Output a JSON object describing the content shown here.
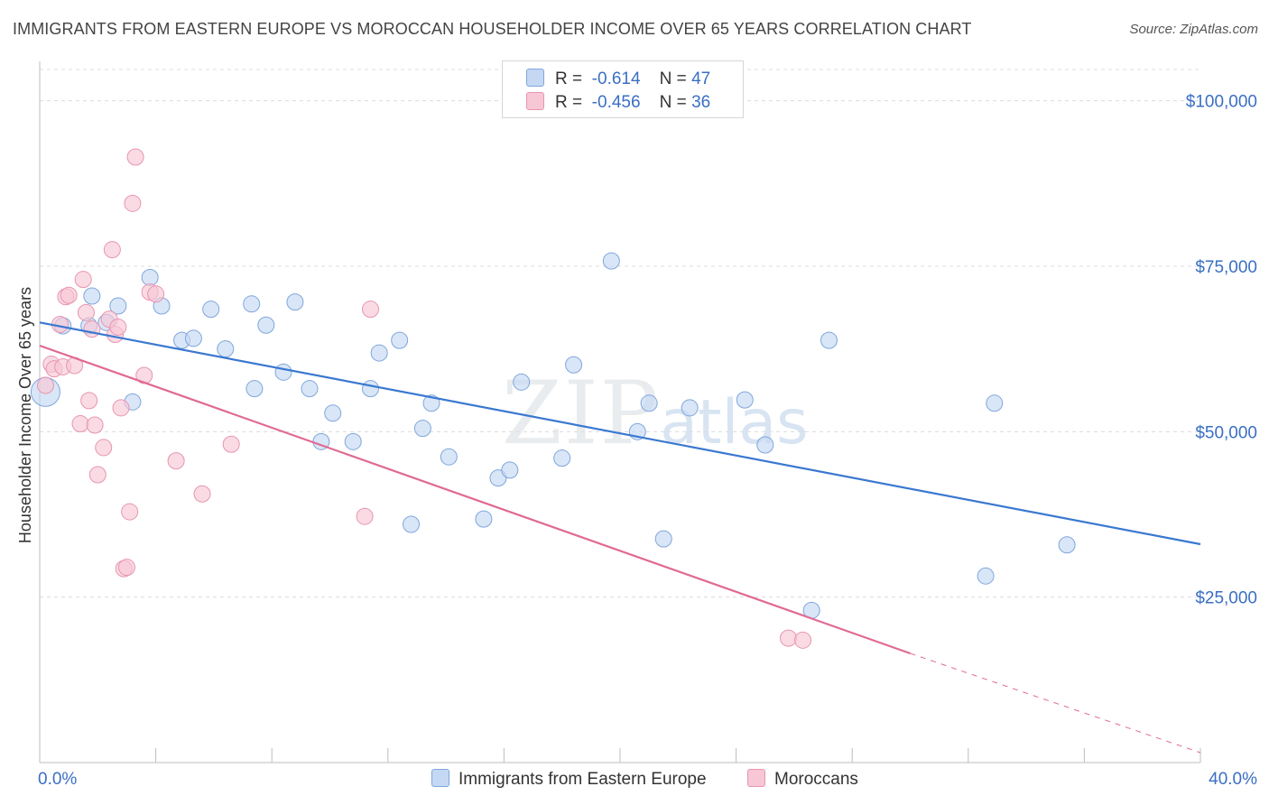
{
  "title": "IMMIGRANTS FROM EASTERN EUROPE VS MOROCCAN HOUSEHOLDER INCOME OVER 65 YEARS CORRELATION CHART",
  "source": "Source: ZipAtlas.com",
  "watermark": {
    "zip": "ZIP",
    "atlas": "atlas"
  },
  "legend": {
    "blue": {
      "r_label": "R =",
      "r_value": "-0.614",
      "n_label": "N =",
      "n_value": "47"
    },
    "pink": {
      "r_label": "R =",
      "r_value": "-0.456",
      "n_label": "N =",
      "n_value": "36"
    }
  },
  "colors": {
    "blue": "#3a78d0",
    "blue_fill": "#c5d8f3",
    "pink": "#e06a93",
    "pink_fill": "#f7c7d6",
    "axis_text": "#3a6fc4"
  },
  "chart_data": {
    "type": "scatter",
    "title": "IMMIGRANTS FROM EASTERN EUROPE VS MOROCCAN HOUSEHOLDER INCOME OVER 65 YEARS CORRELATION CHART",
    "xlabel": "",
    "ylabel": "Householder Income Over 65 years",
    "xlim": [
      0,
      40
    ],
    "ylim": [
      0,
      105000
    ],
    "x_tick_labels": [
      "0.0%",
      "40.0%"
    ],
    "y_ticks": [
      25000,
      50000,
      75000,
      100000
    ],
    "y_tick_labels": [
      "$25,000",
      "$50,000",
      "$75,000",
      "$100,000"
    ],
    "grid": "horizontal dashed",
    "legend_position": "top-center",
    "series": [
      {
        "name": "Immigrants from Eastern Europe",
        "color": "#3a78d0",
        "trend": {
          "x0": 0,
          "y0": 66500,
          "x1": 40,
          "y1": 33000
        },
        "points": [
          [
            0.2,
            56000
          ],
          [
            0.8,
            66000
          ],
          [
            1.7,
            66000
          ],
          [
            1.8,
            70500
          ],
          [
            2.3,
            66500
          ],
          [
            2.7,
            69000
          ],
          [
            3.2,
            54500
          ],
          [
            3.8,
            73300
          ],
          [
            4.2,
            69000
          ],
          [
            4.9,
            63800
          ],
          [
            5.3,
            64100
          ],
          [
            5.9,
            68500
          ],
          [
            6.4,
            62500
          ],
          [
            7.3,
            69300
          ],
          [
            7.4,
            56500
          ],
          [
            7.8,
            66100
          ],
          [
            8.4,
            59000
          ],
          [
            8.8,
            69600
          ],
          [
            9.3,
            56500
          ],
          [
            9.7,
            48500
          ],
          [
            10.1,
            52800
          ],
          [
            10.8,
            48500
          ],
          [
            11.4,
            56500
          ],
          [
            11.7,
            61900
          ],
          [
            12.4,
            63800
          ],
          [
            12.8,
            36000
          ],
          [
            13.2,
            50500
          ],
          [
            13.5,
            54300
          ],
          [
            14.1,
            46200
          ],
          [
            15.3,
            36800
          ],
          [
            15.8,
            43000
          ],
          [
            16.2,
            44200
          ],
          [
            16.6,
            57500
          ],
          [
            18.0,
            46000
          ],
          [
            18.4,
            60100
          ],
          [
            19.7,
            75800
          ],
          [
            20.6,
            50000
          ],
          [
            21.0,
            54300
          ],
          [
            21.5,
            33800
          ],
          [
            22.4,
            53600
          ],
          [
            24.3,
            54800
          ],
          [
            25.0,
            48000
          ],
          [
            26.6,
            23000
          ],
          [
            27.2,
            63800
          ],
          [
            32.6,
            28200
          ],
          [
            32.9,
            54300
          ],
          [
            35.4,
            32900
          ]
        ]
      },
      {
        "name": "Moroccans",
        "color": "#e06a93",
        "trend": {
          "x0": 0,
          "y0": 63000,
          "x1": 30,
          "y1": 16500,
          "dash_to_x": 40,
          "dash_to_y": 1500
        },
        "points": [
          [
            0.2,
            57000
          ],
          [
            0.4,
            60200
          ],
          [
            0.5,
            59500
          ],
          [
            0.7,
            66200
          ],
          [
            0.8,
            59800
          ],
          [
            0.9,
            70400
          ],
          [
            1.0,
            70600
          ],
          [
            1.2,
            60000
          ],
          [
            1.4,
            51200
          ],
          [
            1.5,
            73000
          ],
          [
            1.6,
            68000
          ],
          [
            1.7,
            54700
          ],
          [
            1.8,
            65500
          ],
          [
            1.9,
            51000
          ],
          [
            2.0,
            43500
          ],
          [
            2.2,
            47600
          ],
          [
            2.4,
            67000
          ],
          [
            2.5,
            77500
          ],
          [
            2.6,
            64700
          ],
          [
            2.7,
            65800
          ],
          [
            2.8,
            53600
          ],
          [
            2.9,
            29300
          ],
          [
            3.0,
            29500
          ],
          [
            3.1,
            37900
          ],
          [
            3.2,
            84500
          ],
          [
            3.3,
            91500
          ],
          [
            3.6,
            58500
          ],
          [
            3.8,
            71100
          ],
          [
            4.0,
            70800
          ],
          [
            4.7,
            45600
          ],
          [
            5.6,
            40600
          ],
          [
            6.6,
            48100
          ],
          [
            11.2,
            37200
          ],
          [
            11.4,
            68500
          ],
          [
            25.8,
            18800
          ],
          [
            26.3,
            18500
          ]
        ]
      }
    ]
  }
}
